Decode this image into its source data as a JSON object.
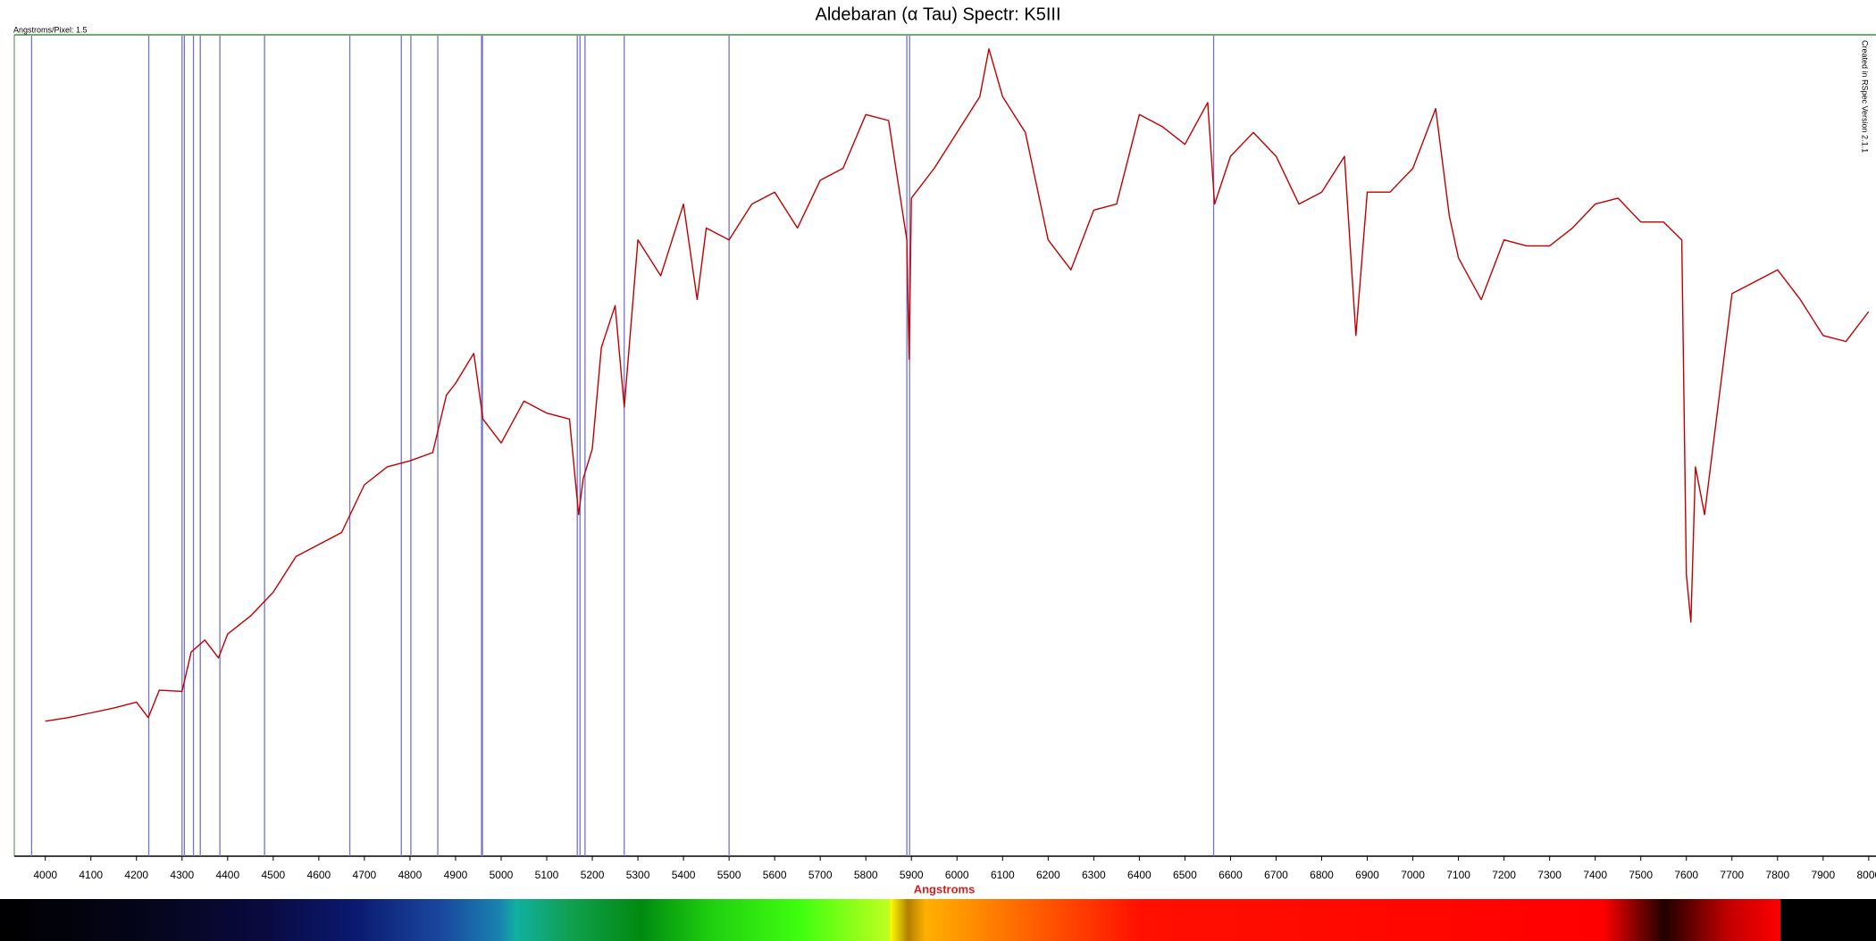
{
  "chart_data": {
    "type": "line",
    "title": "Aldebaran (α Tau) Spectr: K5III",
    "x_label": "Angstroms",
    "scale_note": "Angstroms/Pixel: 1.5",
    "watermark": "Created in RSpec Version 2.1.1",
    "color": "#c00000",
    "reference_color": "#7373c8",
    "x": [
      4000,
      4050,
      4100,
      4150,
      4200,
      4226,
      4250,
      4300,
      4320,
      4350,
      4380,
      4400,
      4450,
      4500,
      4550,
      4600,
      4650,
      4700,
      4750,
      4800,
      4850,
      4880,
      4900,
      4940,
      4960,
      5000,
      5050,
      5100,
      5150,
      5170,
      5180,
      5200,
      5220,
      5250,
      5270,
      5300,
      5350,
      5400,
      5430,
      5450,
      5500,
      5550,
      5600,
      5650,
      5700,
      5750,
      5800,
      5850,
      5890,
      5895,
      5900,
      5950,
      6000,
      6050,
      6070,
      6100,
      6150,
      6200,
      6250,
      6300,
      6350,
      6400,
      6450,
      6500,
      6550,
      6565,
      6600,
      6650,
      6700,
      6750,
      6800,
      6850,
      6875,
      6900,
      6950,
      7000,
      7050,
      7080,
      7100,
      7150,
      7200,
      7250,
      7300,
      7350,
      7400,
      7450,
      7500,
      7550,
      7590,
      7600,
      7610,
      7620,
      7640,
      7700,
      7750,
      7800,
      7850,
      7900,
      7950,
      8000
    ],
    "values": [
      113,
      116,
      120,
      124,
      129,
      116,
      139,
      138,
      171,
      181,
      166,
      186,
      201,
      221,
      251,
      261,
      271,
      311,
      326,
      331,
      338,
      386,
      396,
      421,
      366,
      346,
      381,
      371,
      366,
      286,
      316,
      341,
      426,
      461,
      376,
      516,
      486,
      546,
      466,
      526,
      516,
      546,
      556,
      526,
      566,
      576,
      621,
      616,
      516,
      416,
      551,
      576,
      606,
      636,
      676,
      636,
      606,
      516,
      491,
      541,
      546,
      621,
      611,
      596,
      631,
      546,
      586,
      606,
      586,
      546,
      556,
      586,
      436,
      556,
      556,
      576,
      626,
      536,
      501,
      466,
      516,
      511,
      511,
      526,
      546,
      551,
      531,
      531,
      516,
      236,
      196,
      326,
      286,
      471,
      481,
      491,
      466,
      436,
      431,
      456
    ],
    "reference_lines": [
      3970,
      4227,
      4300,
      4305,
      4325,
      4340,
      4383,
      4481,
      4668,
      4781,
      4802,
      4861,
      4957,
      4959,
      5167,
      5173,
      5184,
      5270,
      5500,
      5890,
      5896,
      6563
    ],
    "xlim": [
      3932,
      8016
    ],
    "ylim": [
      0,
      687
    ],
    "xticks": [
      4000,
      4100,
      4200,
      4300,
      4400,
      4500,
      4600,
      4700,
      4800,
      4900,
      5000,
      5100,
      5200,
      5300,
      5400,
      5500,
      5600,
      5700,
      5800,
      5900,
      6000,
      6100,
      6200,
      6300,
      6400,
      6500,
      6600,
      6700,
      6800,
      6900,
      7000,
      7100,
      7200,
      7300,
      7400,
      7500,
      7600,
      7700,
      7800,
      7900,
      8000
    ]
  }
}
